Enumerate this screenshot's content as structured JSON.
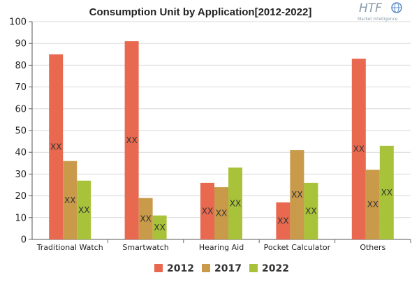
{
  "chart_data": {
    "type": "bar",
    "title": "Consumption Unit by  Application[2012-2022]",
    "categories": [
      "Traditional Watch",
      "Smartwatch",
      "Hearing Aid",
      "Pocket Calculator",
      "Others"
    ],
    "series": [
      {
        "name": "2012",
        "color": "#e8694f",
        "values": [
          85,
          91,
          26,
          17,
          83
        ]
      },
      {
        "name": "2017",
        "color": "#c99a4a",
        "values": [
          36,
          19,
          24,
          41,
          32
        ]
      },
      {
        "name": "2022",
        "color": "#a8c239",
        "values": [
          27,
          11,
          33,
          26,
          43
        ]
      }
    ],
    "data_label": "XX",
    "ylim": [
      0,
      100
    ],
    "yticks": [
      0,
      10,
      20,
      30,
      40,
      50,
      60,
      70,
      80,
      90,
      100
    ],
    "xlabel": "",
    "ylabel": "",
    "grid": true,
    "legend_position": "bottom"
  },
  "logo": {
    "brand": "HTF",
    "tagline": "Market Intelligence",
    "colors": {
      "text": "#8a9aa8",
      "globe": "#5b8fc7"
    }
  }
}
